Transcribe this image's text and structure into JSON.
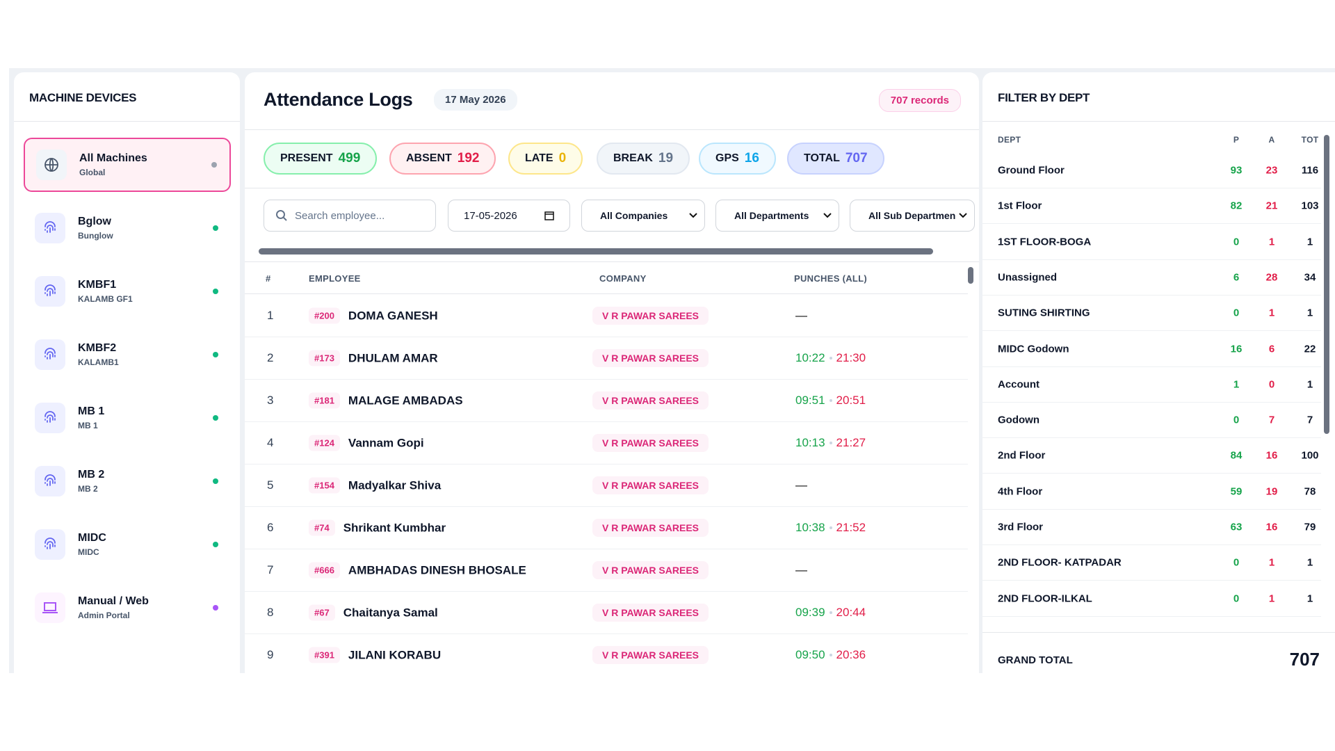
{
  "devices": {
    "title": "MACHINE DEVICES",
    "items": [
      {
        "name": "All Machines",
        "sub": "Global",
        "dot": "#9ca3af"
      },
      {
        "name": "Bglow",
        "sub": "Bunglow",
        "dot": "#10b981"
      },
      {
        "name": "KMBF1",
        "sub": "KALAMB GF1",
        "dot": "#10b981"
      },
      {
        "name": "KMBF2",
        "sub": "KALAMB1",
        "dot": "#10b981"
      },
      {
        "name": "MB 1",
        "sub": "MB 1",
        "dot": "#10b981"
      },
      {
        "name": "MB 2",
        "sub": "MB 2",
        "dot": "#10b981"
      },
      {
        "name": "MIDC",
        "sub": "MIDC",
        "dot": "#10b981"
      },
      {
        "name": "Manual / Web",
        "sub": "Admin Portal",
        "dot": "#a855f7"
      }
    ]
  },
  "logs": {
    "title": "Attendance Logs",
    "date": "17 May 2026",
    "records": "707 records",
    "stats": [
      {
        "label": "PRESENT",
        "value": 499,
        "color": "#16a34a",
        "bg": "#ecfdf3",
        "border": "#86efac"
      },
      {
        "label": "ABSENT",
        "value": 192,
        "color": "#e11d48",
        "bg": "#fff1f2",
        "border": "#fda4af"
      },
      {
        "label": "LATE",
        "value": 0,
        "color": "#eab308",
        "bg": "#fefce8",
        "border": "#fde68a"
      },
      {
        "label": "BREAK",
        "value": 19,
        "color": "#64748b",
        "bg": "#f1f5f9",
        "border": "#e2e8f0"
      },
      {
        "label": "GPS",
        "value": 16,
        "color": "#0ea5e9",
        "bg": "#f0f9ff",
        "border": "#bae6fd"
      },
      {
        "label": "TOTAL",
        "value": 707,
        "color": "#6366f1",
        "bg": "#e0e7ff",
        "border": "#c7d2fe"
      }
    ],
    "filters": {
      "search": "Search employee...",
      "date": "17-05-2026",
      "selects": [
        "All Companies",
        "All Departments",
        "All Sub Departmen"
      ]
    },
    "columns": [
      "#",
      "EMPLOYEE",
      "COMPANY",
      "PUNCHES (ALL)"
    ],
    "rows": [
      {
        "no": 1,
        "id": "#200",
        "name": "DOMA GANESH",
        "company": "V R PAWAR SAREES",
        "in": "—"
      },
      {
        "no": 2,
        "id": "#173",
        "name": "DHULAM AMAR",
        "company": "V R PAWAR SAREES",
        "in": "10:22",
        "out": "21:30"
      },
      {
        "no": 3,
        "id": "#181",
        "name": "MALAGE AMBADAS",
        "company": "V R PAWAR SAREES",
        "in": "09:51",
        "out": "20:51"
      },
      {
        "no": 4,
        "id": "#124",
        "name": "Vannam Gopi",
        "company": "V R PAWAR SAREES",
        "in": "10:13",
        "out": "21:27"
      },
      {
        "no": 5,
        "id": "#154",
        "name": "Madyalkar Shiva",
        "company": "V R PAWAR SAREES",
        "in": "—"
      },
      {
        "no": 6,
        "id": "#74",
        "name": "Shrikant Kumbhar",
        "company": "V R PAWAR SAREES",
        "in": "10:38",
        "out": "21:52"
      },
      {
        "no": 7,
        "id": "#666",
        "name": "AMBHADAS DINESH BHOSALE",
        "company": "V R PAWAR SAREES",
        "in": "—"
      },
      {
        "no": 8,
        "id": "#67",
        "name": "Chaitanya Samal",
        "company": "V R PAWAR SAREES",
        "in": "09:39",
        "out": "20:44"
      },
      {
        "no": 9,
        "id": "#391",
        "name": "JILANI KORABU",
        "company": "V R PAWAR SAREES",
        "in": "09:50",
        "out": "20:36"
      }
    ]
  },
  "depts": {
    "title": "FILTER BY DEPT",
    "columns": [
      "DEPT",
      "P",
      "A",
      "TOT"
    ],
    "rows": [
      [
        "Ground Floor",
        93,
        23,
        116
      ],
      [
        "1st Floor",
        82,
        21,
        103
      ],
      [
        "1ST FLOOR-BOGA",
        0,
        1,
        1
      ],
      [
        "Unassigned",
        6,
        28,
        34
      ],
      [
        "SUTING SHIRTING",
        0,
        1,
        1
      ],
      [
        "MIDC Godown",
        16,
        6,
        22
      ],
      [
        "Account",
        1,
        0,
        1
      ],
      [
        "Godown",
        0,
        7,
        7
      ],
      [
        "2nd Floor",
        84,
        16,
        100
      ],
      [
        "4th Floor",
        59,
        19,
        78
      ],
      [
        "3rd Floor",
        63,
        16,
        79
      ],
      [
        "2ND FLOOR- KATPADAR",
        0,
        1,
        1
      ],
      [
        "2ND FLOOR-ILKAL",
        0,
        1,
        1
      ]
    ],
    "total_label": "GRAND TOTAL",
    "total": 707
  }
}
